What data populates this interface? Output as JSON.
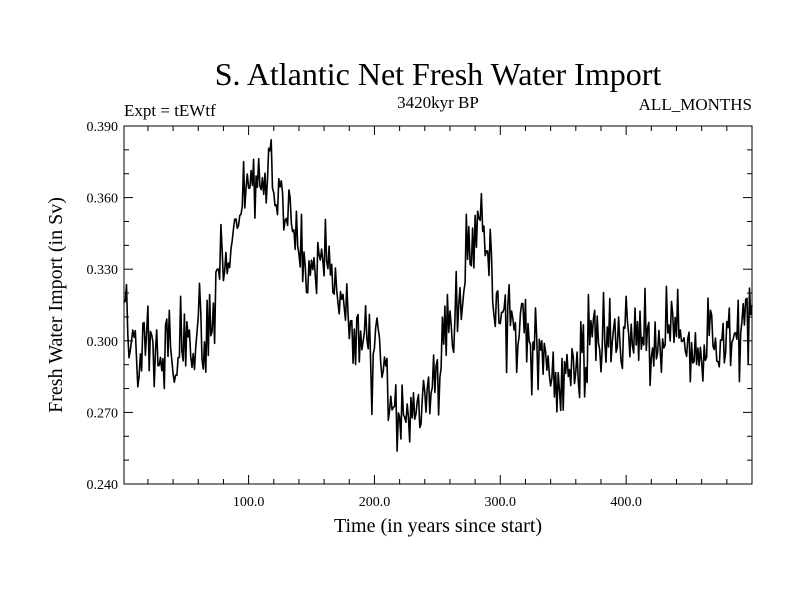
{
  "chart_data": {
    "type": "line",
    "title": "S. Atlantic Net Fresh Water Import",
    "subtitle": "3420kyr BP",
    "experiment": "Expt = tEWtf",
    "period": "ALL_MONTHS",
    "xlabel": "Time (in years since start)",
    "ylabel": "Fresh Water Import (in Sv)",
    "xlim": [
      1,
      500
    ],
    "ylim": [
      0.24,
      0.39
    ],
    "x_ticks": [
      100,
      200,
      300,
      400
    ],
    "x_tick_labels": [
      "100.0",
      "200.0",
      "300.0",
      "400.0"
    ],
    "y_ticks": [
      0.24,
      0.27,
      0.3,
      0.33,
      0.36,
      0.39
    ],
    "y_tick_labels": [
      "0.240",
      "0.270",
      "0.300",
      "0.330",
      "0.360",
      "0.390"
    ],
    "series": [
      {
        "name": "fresh_water_import",
        "x_start": 1,
        "x_step": 5,
        "values": [
          0.318,
          0.302,
          0.292,
          0.305,
          0.3,
          0.296,
          0.298,
          0.305,
          0.292,
          0.3,
          0.298,
          0.295,
          0.307,
          0.3,
          0.312,
          0.318,
          0.326,
          0.338,
          0.348,
          0.356,
          0.372,
          0.36,
          0.368,
          0.378,
          0.364,
          0.358,
          0.355,
          0.344,
          0.338,
          0.332,
          0.328,
          0.33,
          0.326,
          0.322,
          0.318,
          0.316,
          0.308,
          0.302,
          0.3,
          0.296,
          0.292,
          0.29,
          0.283,
          0.272,
          0.266,
          0.265,
          0.268,
          0.273,
          0.278,
          0.283,
          0.292,
          0.302,
          0.31,
          0.318,
          0.328,
          0.334,
          0.344,
          0.35,
          0.33,
          0.318,
          0.312,
          0.31,
          0.306,
          0.302,
          0.298,
          0.295,
          0.292,
          0.288,
          0.286,
          0.283,
          0.282,
          0.285,
          0.29,
          0.295,
          0.3,
          0.302,
          0.298,
          0.296,
          0.3,
          0.303,
          0.302,
          0.298,
          0.3,
          0.302,
          0.297,
          0.296,
          0.3,
          0.302,
          0.304,
          0.302,
          0.3,
          0.296,
          0.302,
          0.306,
          0.3,
          0.298,
          0.303,
          0.3,
          0.306,
          0.312
        ]
      }
    ]
  }
}
